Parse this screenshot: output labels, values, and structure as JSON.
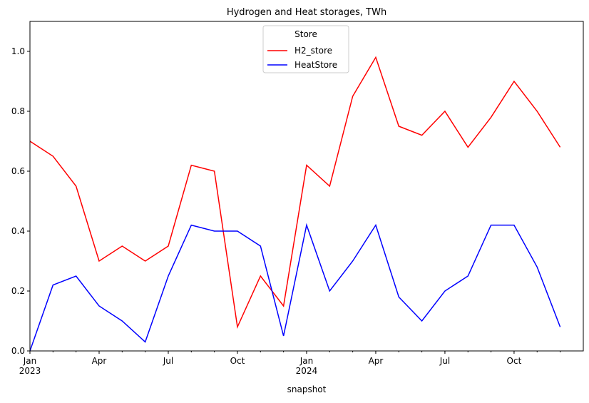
{
  "chart_data": {
    "type": "line",
    "title": "Hydrogen and Heat storages, TWh",
    "x_label": "snapshot",
    "x": [
      "2023-01",
      "2023-02",
      "2023-03",
      "2023-04",
      "2023-05",
      "2023-06",
      "2023-07",
      "2023-08",
      "2023-09",
      "2023-10",
      "2023-11",
      "2023-12",
      "2024-01",
      "2024-02",
      "2024-03",
      "2024-04",
      "2024-05",
      "2024-06",
      "2024-07",
      "2024-08",
      "2024-09",
      "2024-10",
      "2024-11",
      "2024-12"
    ],
    "series": [
      {
        "name": "H2_store",
        "color": "#ff0000",
        "values": [
          0.7,
          0.65,
          0.55,
          0.3,
          0.35,
          0.3,
          0.35,
          0.62,
          0.6,
          0.08,
          0.25,
          0.15,
          0.62,
          0.55,
          0.85,
          0.98,
          0.75,
          0.72,
          0.8,
          0.68,
          0.78,
          0.9,
          0.8,
          0.68
        ]
      },
      {
        "name": "HeatStore",
        "color": "#0000ff",
        "values": [
          0.0,
          0.22,
          0.25,
          0.15,
          0.1,
          0.03,
          0.25,
          0.42,
          0.4,
          0.4,
          0.35,
          0.05,
          0.42,
          0.2,
          0.3,
          0.42,
          0.18,
          0.1,
          0.2,
          0.25,
          0.42,
          0.42,
          0.28,
          0.08
        ]
      }
    ],
    "legend_title": "Store",
    "legend": "upper center",
    "ylim": [
      0,
      1.1
    ],
    "yticks": [
      {
        "value": 0,
        "label": "0.0"
      },
      0.2,
      0.4,
      0.6,
      0.8,
      {
        "value": 1,
        "label": "1.0"
      }
    ],
    "xticks": [
      {
        "value": "2023-01",
        "label": "Jan"
      },
      {
        "value": "2023-04",
        "label": "Apr"
      },
      {
        "value": "2023-07",
        "label": "Jul"
      },
      {
        "value": "2023-10",
        "label": "Oct"
      },
      {
        "value": "2024-01",
        "label": "Jan"
      },
      {
        "value": "2024-04",
        "label": "Apr"
      },
      {
        "value": "2024-07",
        "label": "Jul"
      },
      {
        "value": "2024-10",
        "label": "Oct"
      }
    ],
    "xtick_years": [
      {
        "value": "2023-01",
        "label": "2023"
      },
      {
        "value": "2024-01",
        "label": "2024"
      }
    ]
  }
}
